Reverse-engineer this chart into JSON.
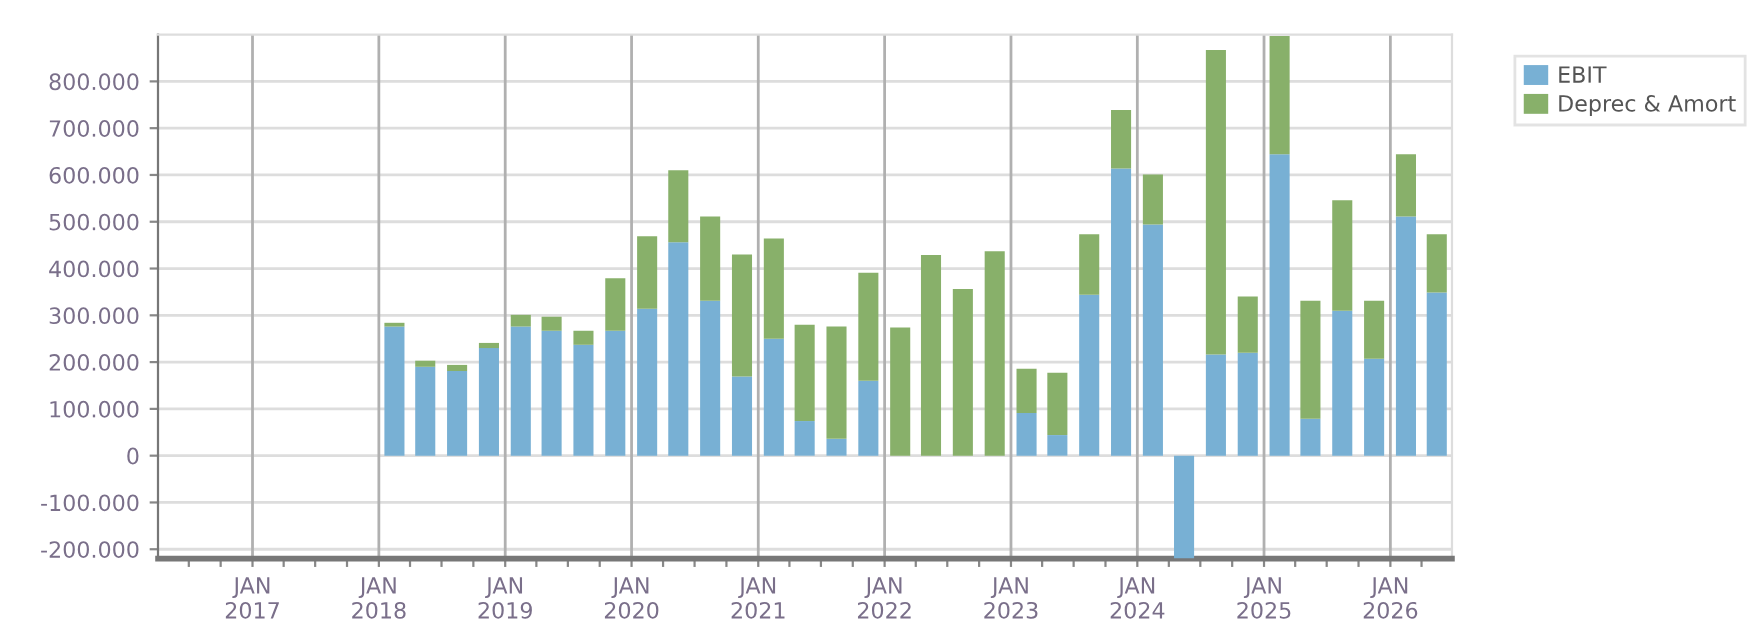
{
  "chart_data": {
    "type": "bar",
    "stacked": true,
    "x": [
      "2018-02-15",
      "2018-05-15",
      "2018-08-15",
      "2018-11-15",
      "2019-02-15",
      "2019-05-15",
      "2019-08-15",
      "2019-11-15",
      "2020-02-15",
      "2020-05-15",
      "2020-08-15",
      "2020-11-15",
      "2021-02-15",
      "2021-05-15",
      "2021-08-15",
      "2021-11-15",
      "2022-02-15",
      "2022-05-15",
      "2022-08-15",
      "2022-11-15",
      "2023-02-15",
      "2023-05-15",
      "2023-08-15",
      "2023-11-15",
      "2024-02-15",
      "2024-05-15",
      "2024-08-15",
      "2024-11-15",
      "2025-02-15",
      "2025-05-15",
      "2025-08-15",
      "2025-11-15",
      "2026-02-15",
      "2026-05-15"
    ],
    "series": [
      {
        "name": "EBIT",
        "color": "#78b0d4",
        "values": [
          276000,
          190000,
          181000,
          230000,
          276000,
          267000,
          237000,
          267000,
          314000,
          456000,
          331000,
          169000,
          250000,
          74000,
          36000,
          160000,
          null,
          null,
          null,
          null,
          91000,
          44000,
          344000,
          614000,
          494000,
          -220000,
          216000,
          220000,
          644000,
          79000,
          310000,
          207000,
          511000,
          349000
        ]
      },
      {
        "name": "Deprec & Amort",
        "color": "#88b06a",
        "values": [
          8000,
          13000,
          13000,
          11000,
          25000,
          30000,
          30000,
          112000,
          155000,
          154000,
          180000,
          261000,
          214000,
          206000,
          240000,
          231000,
          274000,
          429000,
          356000,
          437000,
          95000,
          133000,
          129000,
          125000,
          107000,
          0,
          651000,
          120000,
          253000,
          252000,
          236000,
          124000,
          133000,
          124000
        ]
      }
    ],
    "xlim": [
      "2016-04-03",
      "2026-06-28"
    ],
    "xticks": [
      {
        "value": "2016-07-01",
        "label": null
      },
      {
        "value": "2016-10-01",
        "label": null
      },
      {
        "value": "2017-01-01",
        "label": "JAN\n2017"
      },
      {
        "value": "2017-04-01",
        "label": null
      },
      {
        "value": "2017-07-01",
        "label": null
      },
      {
        "value": "2017-10-01",
        "label": null
      },
      {
        "value": "2018-01-01",
        "label": "JAN\n2018"
      },
      {
        "value": "2018-04-01",
        "label": null
      },
      {
        "value": "2018-07-01",
        "label": null
      },
      {
        "value": "2018-10-01",
        "label": null
      },
      {
        "value": "2019-01-01",
        "label": "JAN\n2019"
      },
      {
        "value": "2019-04-01",
        "label": null
      },
      {
        "value": "2019-07-01",
        "label": null
      },
      {
        "value": "2019-10-01",
        "label": null
      },
      {
        "value": "2020-01-01",
        "label": "JAN\n2020"
      },
      {
        "value": "2020-04-01",
        "label": null
      },
      {
        "value": "2020-07-01",
        "label": null
      },
      {
        "value": "2020-10-01",
        "label": null
      },
      {
        "value": "2021-01-01",
        "label": "JAN\n2021"
      },
      {
        "value": "2021-04-01",
        "label": null
      },
      {
        "value": "2021-07-01",
        "label": null
      },
      {
        "value": "2021-10-01",
        "label": null
      },
      {
        "value": "2022-01-01",
        "label": "JAN\n2022"
      },
      {
        "value": "2022-04-01",
        "label": null
      },
      {
        "value": "2022-07-01",
        "label": null
      },
      {
        "value": "2022-10-01",
        "label": null
      },
      {
        "value": "2023-01-01",
        "label": "JAN\n2023"
      },
      {
        "value": "2023-04-01",
        "label": null
      },
      {
        "value": "2023-07-01",
        "label": null
      },
      {
        "value": "2023-10-01",
        "label": null
      },
      {
        "value": "2024-01-01",
        "label": "JAN\n2024"
      },
      {
        "value": "2024-04-01",
        "label": null
      },
      {
        "value": "2024-07-01",
        "label": null
      },
      {
        "value": "2024-10-01",
        "label": null
      },
      {
        "value": "2025-01-01",
        "label": "JAN\n2025"
      },
      {
        "value": "2025-04-01",
        "label": null
      },
      {
        "value": "2025-07-01",
        "label": null
      },
      {
        "value": "2025-10-01",
        "label": null
      },
      {
        "value": "2026-01-01",
        "label": "JAN\n2026"
      },
      {
        "value": "2026-04-01",
        "label": null
      }
    ],
    "ylim": [
      -220000,
      900000
    ],
    "yticks": [
      {
        "value": -200000,
        "label": "-200.000"
      },
      {
        "value": -100000,
        "label": "-100.000"
      },
      0,
      {
        "value": 100000,
        "label": "100.000"
      },
      {
        "value": 200000,
        "label": "200.000"
      },
      {
        "value": 300000,
        "label": "300.000"
      },
      {
        "value": 400000,
        "label": "400.000"
      },
      {
        "value": 500000,
        "label": "500.000"
      },
      {
        "value": 600000,
        "label": "600.000"
      },
      {
        "value": 700000,
        "label": "700.000"
      },
      {
        "value": 800000,
        "label": "800.000"
      }
    ],
    "grid": true,
    "legend": "top right"
  }
}
